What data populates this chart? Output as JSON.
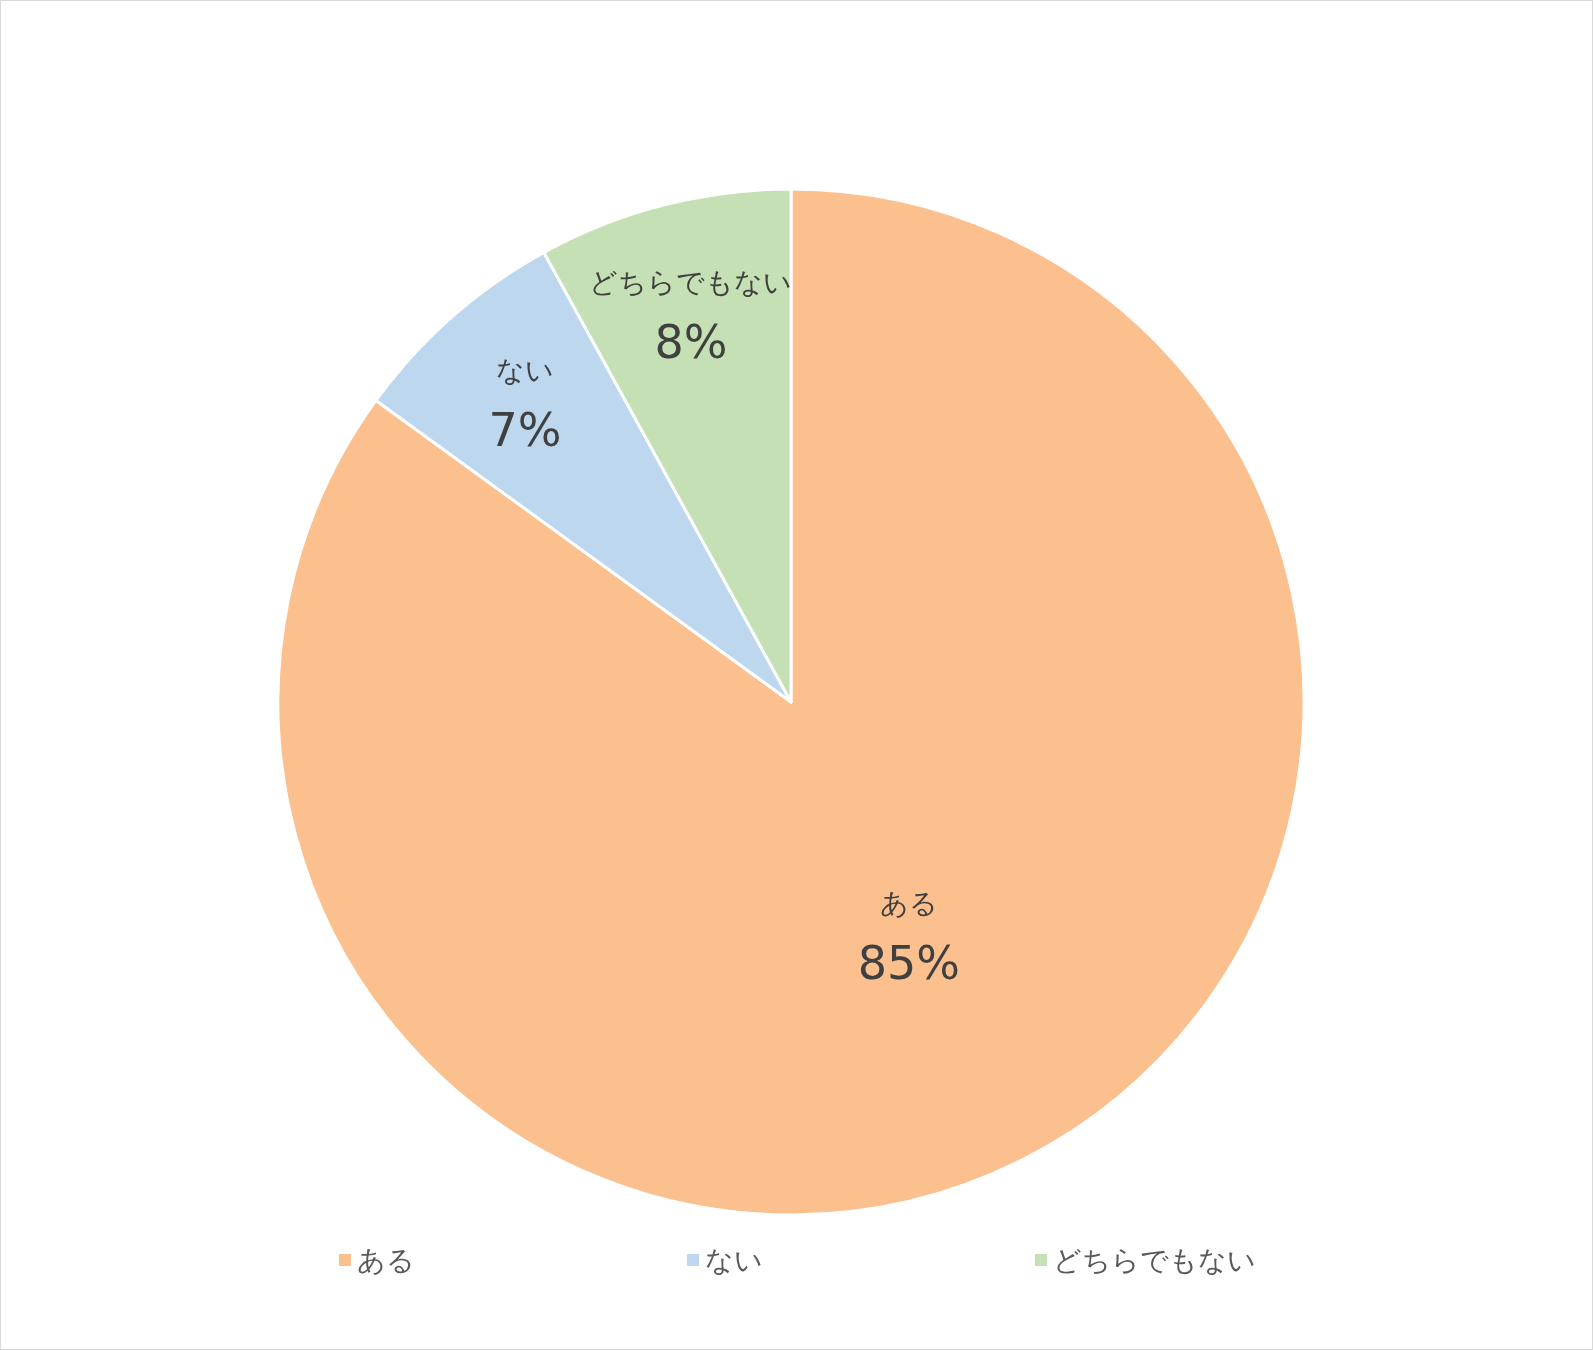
{
  "chart_data": {
    "type": "pie",
    "categories": [
      "ある",
      "ない",
      "どちらでもない"
    ],
    "values": [
      85,
      7,
      8
    ],
    "value_labels": [
      "85%",
      "7%",
      "8%"
    ],
    "colors": [
      "#fcbf8e",
      "#bdd7ee",
      "#c5e0b4"
    ],
    "legend": "bottom"
  }
}
